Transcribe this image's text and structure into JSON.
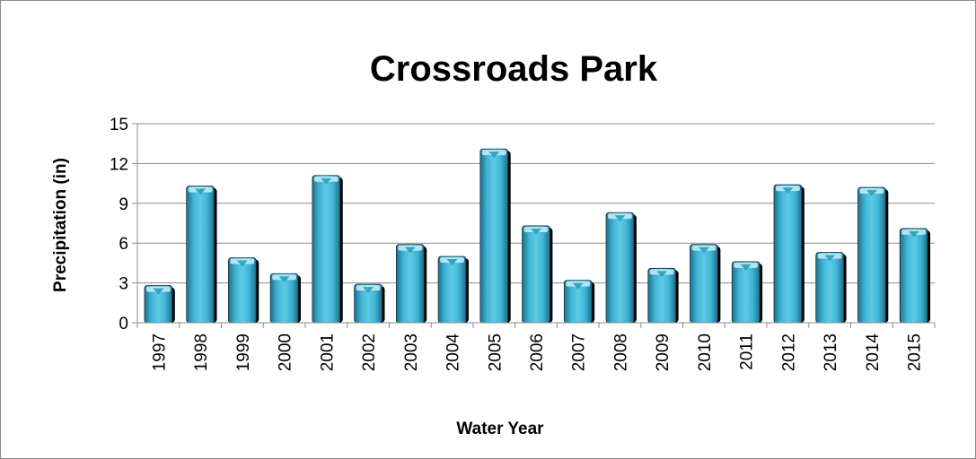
{
  "chart_data": {
    "type": "bar",
    "title": "Crossroads Park",
    "xlabel": "Water Year",
    "ylabel": "Precipitation (in)",
    "categories": [
      "1997",
      "1998",
      "1999",
      "2000",
      "2001",
      "2002",
      "2003",
      "2004",
      "2005",
      "2006",
      "2007",
      "2008",
      "2009",
      "2010",
      "2011",
      "2012",
      "2013",
      "2014",
      "2015"
    ],
    "values": [
      2.8,
      10.3,
      4.9,
      3.7,
      11.1,
      2.9,
      5.9,
      5.0,
      13.1,
      7.3,
      3.2,
      8.3,
      4.1,
      5.9,
      4.6,
      10.4,
      5.3,
      10.2,
      7.1
    ],
    "ylim": [
      0,
      15
    ],
    "yticks": [
      "0",
      "3",
      "6",
      "9",
      "12",
      "15"
    ],
    "grid": true,
    "legend": "none",
    "colors": {
      "bar_fill": "#3fb4d6",
      "bar_highlight": "#bfeaf6",
      "bar_shadow": "#000000",
      "grid": "#8c8c8c",
      "axis": "#8c8c8c"
    }
  }
}
